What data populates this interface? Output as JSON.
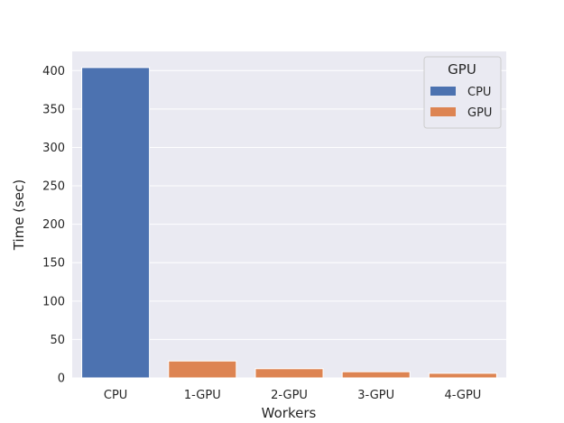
{
  "chart_data": {
    "type": "bar",
    "categories": [
      "CPU",
      "1-GPU",
      "2-GPU",
      "3-GPU",
      "4-GPU"
    ],
    "values": [
      404,
      22,
      12,
      8,
      6
    ],
    "hue": [
      "CPU",
      "GPU",
      "GPU",
      "GPU",
      "GPU"
    ],
    "title": "",
    "xlabel": "Workers",
    "ylabel": "Time (sec)",
    "ylim": [
      0,
      425
    ],
    "yticks": [
      0,
      50,
      100,
      150,
      200,
      250,
      300,
      350,
      400
    ],
    "grid": true,
    "legend": {
      "title": "GPU",
      "placement": "top-right",
      "entries": [
        {
          "label": "CPU",
          "color": "#4c72b0"
        },
        {
          "label": "GPU",
          "color": "#dd8452"
        }
      ]
    },
    "colors": {
      "CPU": "#4c72b0",
      "GPU": "#dd8452",
      "background": "#eaeaf2",
      "grid": "#ffffff"
    }
  }
}
